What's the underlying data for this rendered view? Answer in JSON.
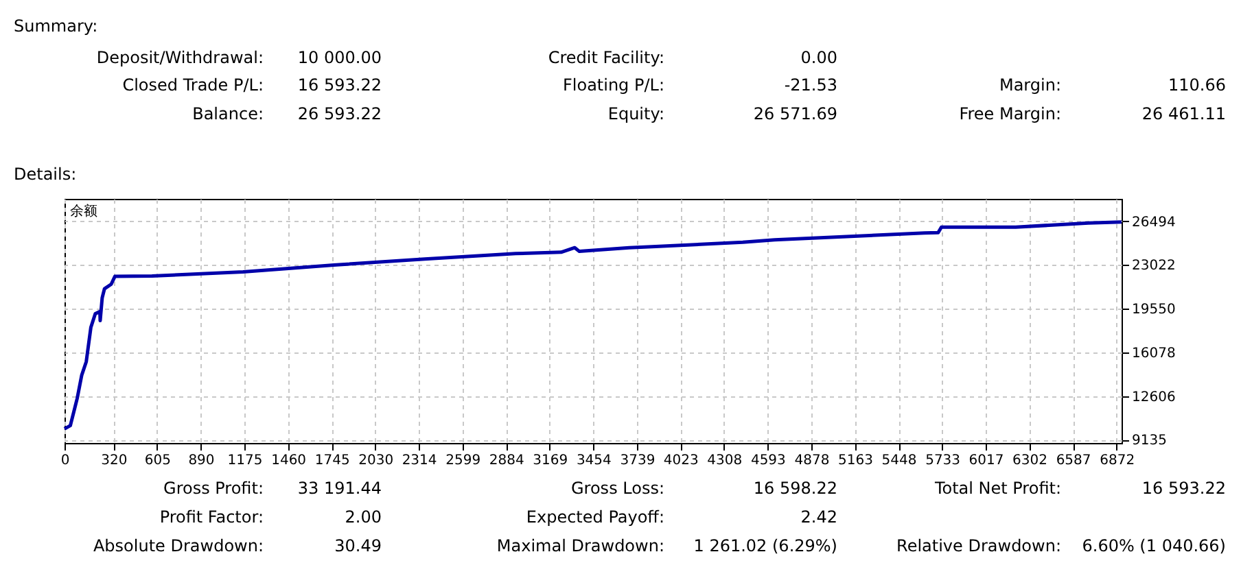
{
  "chart_data": {
    "type": "line",
    "xlim": [
      0,
      6905
    ],
    "ylim": [
      8875,
      28280
    ],
    "xticks": [
      0,
      320,
      605,
      890,
      1175,
      1460,
      1745,
      2030,
      2314,
      2599,
      2884,
      3169,
      3454,
      3739,
      4023,
      4308,
      4593,
      4878,
      5163,
      5448,
      5733,
      6017,
      6302,
      6587,
      6872
    ],
    "yticks": [
      9135,
      12606,
      16078,
      19550,
      23022,
      26494
    ],
    "grid": true,
    "legend": false,
    "marker": "none",
    "line_style": "solid",
    "series": [
      {
        "name": "余额",
        "color": "#0000aa",
        "x": [
          0,
          38,
          68,
          83,
          112,
          142,
          172,
          201,
          231,
          233,
          246,
          261,
          305,
          329,
          572,
          1166,
          1760,
          2353,
          2947,
          3244,
          3333,
          3363,
          3689,
          3837,
          4431,
          4639,
          5084,
          5618,
          5707,
          5728,
          6213,
          6688,
          6905
        ],
        "values": [
          10000,
          10256,
          11703,
          12432,
          14249,
          15337,
          18057,
          19145,
          19320,
          18600,
          20407,
          21136,
          21495,
          22115,
          22148,
          22474,
          23018,
          23497,
          23932,
          24040,
          24400,
          24106,
          24400,
          24476,
          24833,
          25018,
          25270,
          25563,
          25597,
          26032,
          26032,
          26358,
          26434
        ]
      }
    ],
    "annotations": [
      "Summary:",
      "Deposit/Withdrawal:",
      "10 000.00",
      "Credit Facility:",
      "0.00",
      "Closed Trade P/L:",
      "16 593.22",
      "Floating P/L:",
      "-21.53",
      "Margin:",
      "110.66",
      "Balance:",
      "26 593.22",
      "Equity:",
      "26 571.69",
      "Free Margin:",
      "26 461.11",
      "Details:",
      "Gross Profit:",
      "33 191.44",
      "Gross Loss:",
      "16 598.22",
      "Total Net Profit:",
      "16 593.22",
      "Profit Factor:",
      "2.00",
      "Expected Payoff:",
      "2.42",
      "Absolute Drawdown:",
      "30.49",
      "Maximal Drawdown:",
      "1 261.02 (6.29%)",
      "Relative Drawdown:",
      "6.60% (1 040.66)"
    ]
  }
}
